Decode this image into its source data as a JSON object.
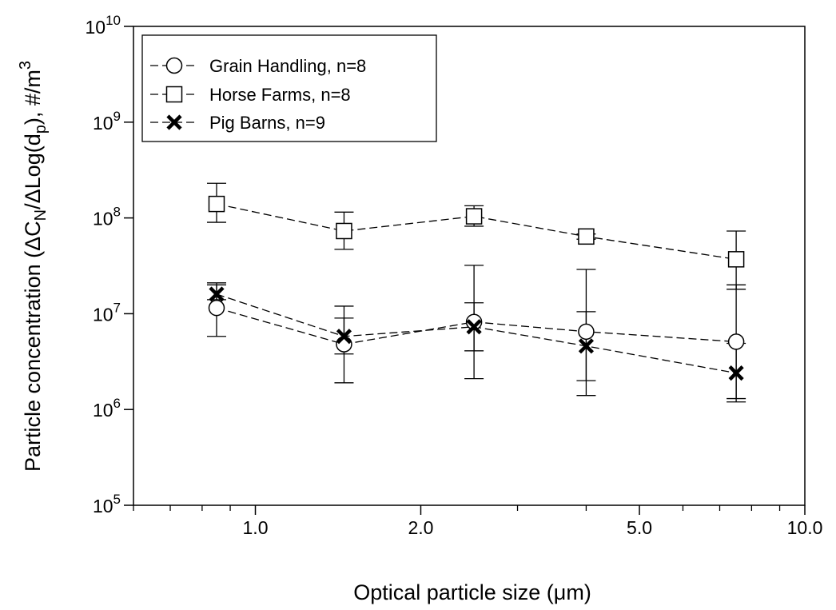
{
  "chart_data": {
    "type": "scatter",
    "title": "",
    "xlabel": "Optical particle size (μm)",
    "ylabel": "Particle concentration (ΔCₙ/ΔLog(dₚ), #/m³)",
    "ylabel_parts": {
      "prefix": "Particle concentration (ΔC",
      "sub1": "N",
      "mid": "/ΔLog(d",
      "sub2": "p",
      "mid2": "), #/m",
      "sup": "3"
    },
    "x_scale": "log",
    "y_scale": "log",
    "xlim": [
      0.6,
      10.0
    ],
    "ylim": [
      100000,
      10000000000
    ],
    "x_tick_values": [
      1.0,
      2.0,
      5.0,
      10.0
    ],
    "x_tick_labels": [
      "1.0",
      "2.0",
      "5.0",
      "10.0"
    ],
    "x_minor_ticks": [
      0.6,
      0.7,
      0.8,
      0.9,
      3.0,
      4.0,
      6.0,
      7.0,
      8.0,
      9.0
    ],
    "y_ticks": [
      {
        "value": 100000,
        "base": "10",
        "exp": "5"
      },
      {
        "value": 1000000,
        "base": "10",
        "exp": "6"
      },
      {
        "value": 10000000,
        "base": "10",
        "exp": "7"
      },
      {
        "value": 100000000,
        "base": "10",
        "exp": "8"
      },
      {
        "value": 1000000000,
        "base": "10",
        "exp": "9"
      },
      {
        "value": 10000000000,
        "base": "10",
        "exp": "10"
      }
    ],
    "grid": false,
    "legend_position": "top-left",
    "series": [
      {
        "name": "Grain Handling, n=8",
        "marker": "circle",
        "x": [
          0.85,
          1.45,
          2.5,
          4.0,
          7.5
        ],
        "y": [
          11500000,
          4800000,
          8200000,
          6500000,
          5100000
        ],
        "err_low": [
          5800000,
          1900000,
          2100000,
          1400000,
          1300000
        ],
        "err_high": [
          20000000,
          12000000,
          32000000,
          29000000,
          20000000
        ]
      },
      {
        "name": "Horse Farms, n=8",
        "marker": "square",
        "x": [
          0.85,
          1.45,
          2.5,
          4.0,
          7.5
        ],
        "y": [
          140000000,
          73000000,
          104000000,
          64000000,
          37000000
        ],
        "err_low": [
          90000000,
          47000000,
          82000000,
          60000000,
          18000000
        ],
        "err_high": [
          230000000,
          115000000,
          134000000,
          68000000,
          73000000
        ]
      },
      {
        "name": "Pig Barns, n=9",
        "marker": "x",
        "x": [
          0.85,
          1.45,
          2.5,
          4.0,
          7.5
        ],
        "y": [
          16000000,
          5800000,
          7300000,
          4600000,
          2400000
        ],
        "err_low": [
          14000000,
          3800000,
          4100000,
          2000000,
          1200000
        ],
        "err_high": [
          21000000,
          9000000,
          13000000,
          10500000,
          4900000
        ]
      }
    ]
  }
}
